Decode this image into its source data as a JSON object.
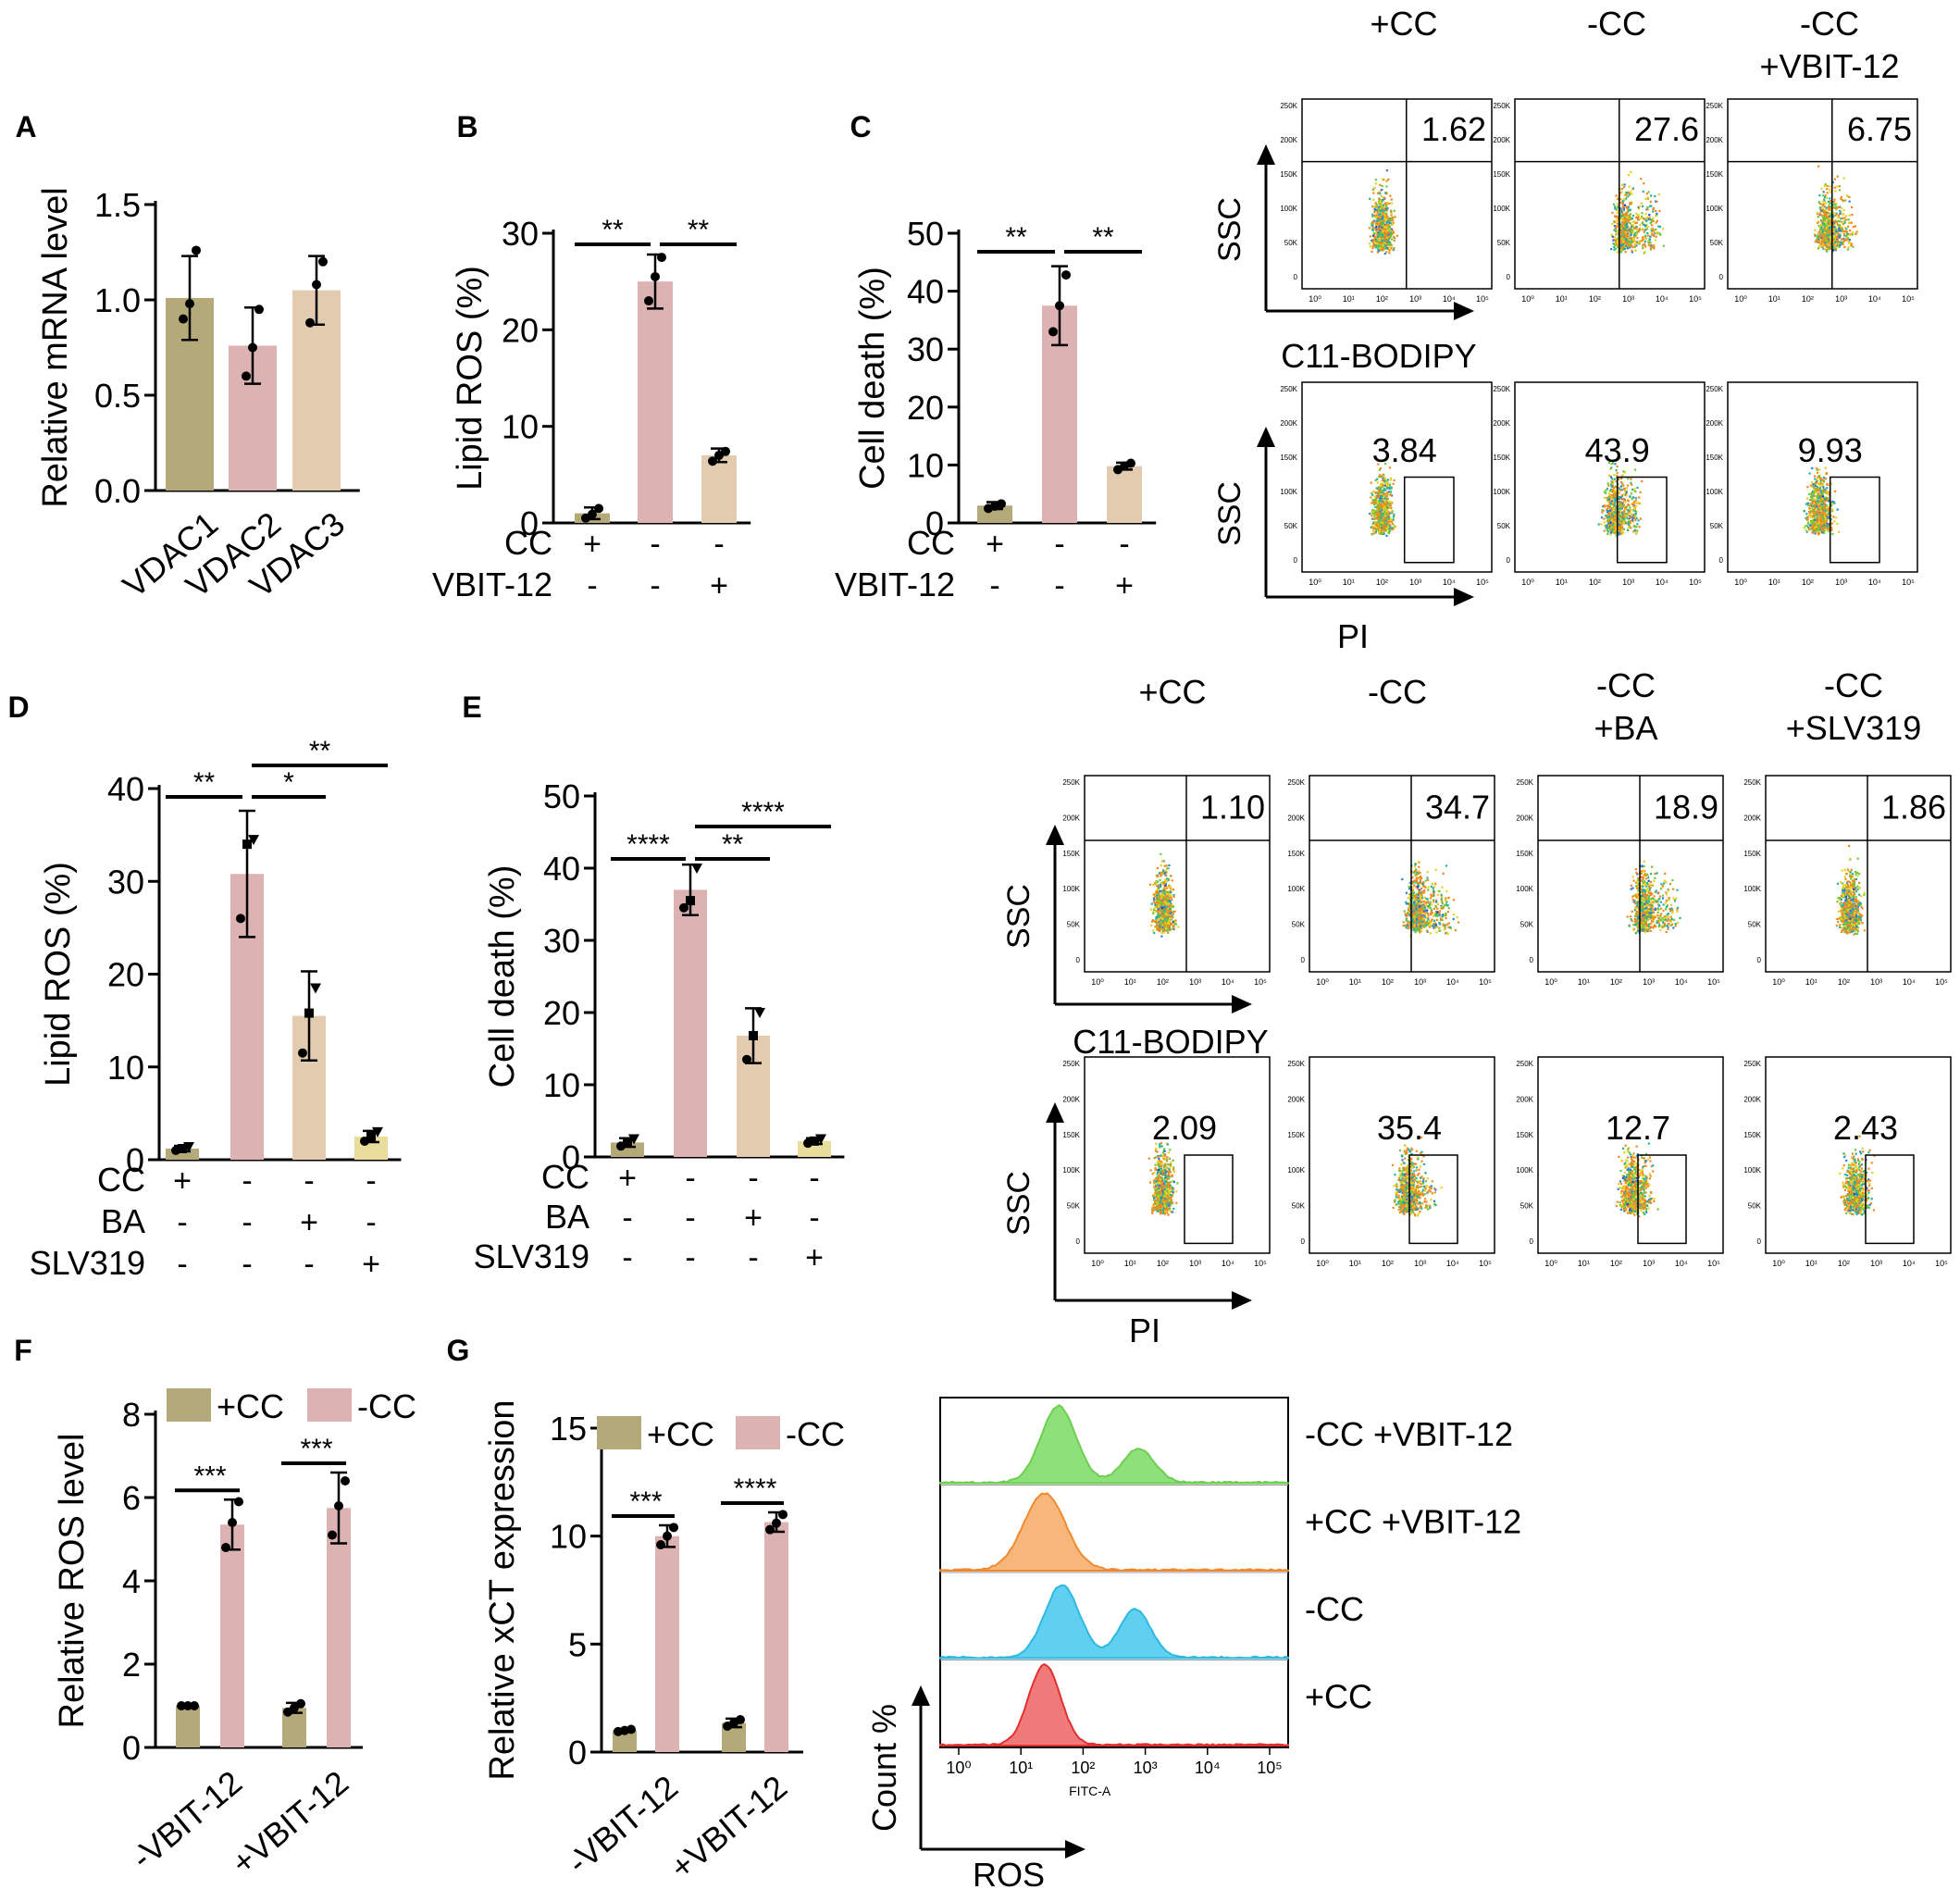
{
  "colors": {
    "plus_cc": "#b4a978",
    "minus_cc": "#ddb2b2",
    "third": "#e3cbb0",
    "cyto": "#1f3fd0"
  },
  "panel_letters": [
    "A",
    "B",
    "C",
    "D",
    "E",
    "F",
    "G"
  ],
  "chart_data": [
    {
      "id": "A",
      "type": "bar",
      "ylabel": "Relative mRNA level",
      "ylim": [
        0,
        1.5
      ],
      "yticks": [
        "0.0",
        "0.5",
        "1.0",
        "1.5"
      ],
      "categories": [
        "VDAC1",
        "VDAC2",
        "VDAC3"
      ],
      "values": [
        1.01,
        0.76,
        1.05
      ],
      "errors": [
        0.22,
        0.2,
        0.18
      ],
      "points": [
        [
          0.9,
          0.98,
          1.26
        ],
        [
          0.6,
          0.75,
          0.95
        ],
        [
          0.88,
          1.08,
          1.2
        ]
      ]
    },
    {
      "id": "B",
      "type": "bar",
      "ylabel": "Lipid ROS (%)",
      "ylim": [
        0,
        30
      ],
      "yticks": [
        "0",
        "10",
        "20",
        "30"
      ],
      "values": [
        1.0,
        25.0,
        7.0
      ],
      "errors": [
        0.6,
        2.8,
        0.7
      ],
      "points": [
        [
          0.5,
          0.9,
          1.5
        ],
        [
          23,
          25.5,
          27.5
        ],
        [
          6.4,
          7.0,
          7.4
        ]
      ],
      "rows": [
        {
          "label": "CC",
          "signs": [
            "+",
            "-",
            "-"
          ]
        },
        {
          "label": "VBIT-12",
          "signs": [
            "-",
            "-",
            "+"
          ]
        }
      ],
      "sig": [
        {
          "from": 0,
          "to": 1,
          "label": "**",
          "level": 0
        },
        {
          "from": 1,
          "to": 2,
          "label": "**",
          "level": 0
        }
      ]
    },
    {
      "id": "C",
      "type": "bar",
      "ylabel": "Cell death (%)",
      "ylim": [
        0,
        50
      ],
      "yticks": [
        "0",
        "10",
        "20",
        "30",
        "40",
        "50"
      ],
      "values": [
        3.0,
        37.5,
        9.8
      ],
      "errors": [
        0.6,
        6.8,
        0.6
      ],
      "points": [
        [
          2.5,
          2.9,
          3.3
        ],
        [
          33,
          37.5,
          42.8
        ],
        [
          9.2,
          9.8,
          10.3
        ]
      ],
      "rows": [
        {
          "label": "CC",
          "signs": [
            "+",
            "-",
            "-"
          ]
        },
        {
          "label": "VBIT-12",
          "signs": [
            "-",
            "-",
            "+"
          ]
        }
      ],
      "sig": [
        {
          "from": 0,
          "to": 1,
          "label": "**",
          "level": 0
        },
        {
          "from": 1,
          "to": 2,
          "label": "**",
          "level": 0
        }
      ]
    },
    {
      "id": "D",
      "type": "bar",
      "ylabel": "Lipid ROS (%)",
      "ylim": [
        0,
        40
      ],
      "yticks": [
        "0",
        "10",
        "20",
        "30",
        "40"
      ],
      "values": [
        1.2,
        30.8,
        15.5,
        2.5
      ],
      "errors": [
        0.3,
        6.8,
        4.8,
        0.6
      ],
      "points": [
        [
          1.0,
          1.2,
          1.4
        ],
        [
          26,
          34,
          34.5
        ],
        [
          11.5,
          15.8,
          18.5
        ],
        [
          2.0,
          2.5,
          3.0
        ]
      ],
      "rows": [
        {
          "label": "CC",
          "signs": [
            "+",
            "-",
            "-",
            "-"
          ]
        },
        {
          "label": "BA",
          "signs": [
            "-",
            "-",
            "+",
            "-"
          ]
        },
        {
          "label": "SLV319",
          "signs": [
            "-",
            "-",
            "-",
            "+"
          ]
        }
      ],
      "sig": [
        {
          "from": 0,
          "to": 1,
          "label": "**",
          "level": 0
        },
        {
          "from": 1,
          "to": 2,
          "label": "*",
          "level": 0
        },
        {
          "from": 1,
          "to": 3,
          "label": "**",
          "level": 1
        }
      ]
    },
    {
      "id": "E",
      "type": "bar",
      "ylabel": "Cell death (%)",
      "ylim": [
        0,
        50
      ],
      "yticks": [
        "0",
        "10",
        "20",
        "30",
        "40",
        "50"
      ],
      "values": [
        2.0,
        37.0,
        16.8,
        2.2
      ],
      "errors": [
        0.6,
        3.5,
        3.8,
        0.4
      ],
      "points": [
        [
          1.5,
          2.0,
          2.5
        ],
        [
          34.5,
          35.5,
          40
        ],
        [
          13.5,
          16.8,
          20
        ],
        [
          1.9,
          2.2,
          2.5
        ]
      ],
      "rows": [
        {
          "label": "CC",
          "signs": [
            "+",
            "-",
            "-",
            "-"
          ]
        },
        {
          "label": "BA",
          "signs": [
            "-",
            "-",
            "+",
            "-"
          ]
        },
        {
          "label": "SLV319",
          "signs": [
            "-",
            "-",
            "-",
            "+"
          ]
        }
      ],
      "sig": [
        {
          "from": 0,
          "to": 1,
          "label": "****",
          "level": 0
        },
        {
          "from": 1,
          "to": 2,
          "label": "**",
          "level": 0
        },
        {
          "from": 1,
          "to": 3,
          "label": "****",
          "level": 1
        }
      ]
    },
    {
      "id": "F",
      "type": "bar",
      "ylabel": "Relative ROS level",
      "ylim": [
        0,
        8
      ],
      "yticks": [
        "0",
        "2",
        "4",
        "6",
        "8"
      ],
      "categories": [
        "-VBIT-12",
        "+VBIT-12"
      ],
      "series": [
        {
          "name": "+CC",
          "values": [
            1.0,
            0.95
          ],
          "errors": [
            0.05,
            0.12
          ],
          "points": [
            [
              1,
              1,
              1
            ],
            [
              0.85,
              0.95,
              1.05
            ]
          ]
        },
        {
          "name": "-CC",
          "values": [
            5.35,
            5.75
          ],
          "errors": [
            0.6,
            0.85
          ],
          "points": [
            [
              4.8,
              5.4,
              5.9
            ],
            [
              5.1,
              5.8,
              6.4
            ]
          ]
        }
      ],
      "sig": [
        {
          "label": "***"
        },
        {
          "label": "***"
        }
      ]
    },
    {
      "id": "G",
      "type": "bar",
      "ylabel": "Relative xCT expression",
      "ylim": [
        0,
        15
      ],
      "yticks": [
        "0",
        "5",
        "10",
        "15"
      ],
      "categories": [
        "-VBIT-12",
        "+VBIT-12"
      ],
      "series": [
        {
          "name": "+CC",
          "values": [
            1.0,
            1.35
          ],
          "errors": [
            0.05,
            0.2
          ],
          "points": [
            [
              0.95,
              1.0,
              1.05
            ],
            [
              1.2,
              1.35,
              1.5
            ]
          ]
        },
        {
          "name": "-CC",
          "values": [
            10.0,
            10.65
          ],
          "errors": [
            0.5,
            0.45
          ],
          "points": [
            [
              9.6,
              10.0,
              10.4
            ],
            [
              10.3,
              10.6,
              11.0
            ]
          ]
        }
      ],
      "sig": [
        {
          "label": "***"
        },
        {
          "label": "****"
        }
      ]
    }
  ],
  "flow_C": {
    "cols": [
      "+CC",
      "-CC",
      "-CC\n+VBIT-12"
    ],
    "row1": {
      "values": [
        "1.62",
        "27.6",
        "6.75"
      ],
      "xlabel": "C11-BODIPY",
      "ylabel": "SSC"
    },
    "row2": {
      "values": [
        "3.84",
        "43.9",
        "9.93"
      ],
      "xlabel": "PI",
      "ylabel": "SSC"
    }
  },
  "flow_DE": {
    "cols": [
      "+CC",
      "-CC",
      "-CC\n+BA",
      "-CC\n+SLV319"
    ],
    "row1": {
      "values": [
        "1.10",
        "34.7",
        "18.9",
        "1.86"
      ],
      "xlabel": "C11-BODIPY",
      "ylabel": "SSC"
    },
    "row2": {
      "values": [
        "2.09",
        "35.4",
        "12.7",
        "2.43"
      ],
      "xlabel": "PI",
      "ylabel": "SSC"
    }
  },
  "flow_ticks": {
    "y": [
      "250K",
      "200K",
      "150K",
      "100K",
      "50K",
      "0"
    ],
    "x": [
      "10⁰",
      "10¹",
      "10²",
      "10³",
      "10⁴",
      "10⁵"
    ]
  },
  "histogram": {
    "labels": [
      "-CC +VBIT-12",
      "+CC +VBIT-12",
      "-CC",
      "+CC"
    ],
    "colors": [
      "#8ee07a",
      "#f7b77a",
      "#5fd0f0",
      "#f07a7a"
    ],
    "lines": [
      "#6ccf50",
      "#f08a30",
      "#30b8e0",
      "#e03030"
    ],
    "xlabel": "FITC-A",
    "axis_x": "ROS",
    "axis_y": "Count %",
    "xticks": [
      "10⁰",
      "10¹",
      "10²",
      "10³",
      "10⁴",
      "10⁵"
    ]
  }
}
